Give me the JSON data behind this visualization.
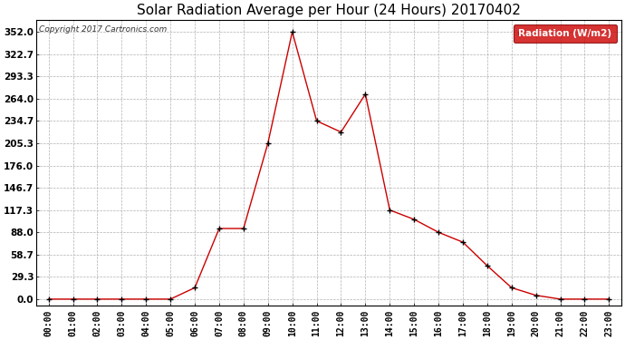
{
  "title": "Solar Radiation Average per Hour (24 Hours) 20170402",
  "copyright_text": "Copyright 2017 Cartronics.com",
  "legend_label": "Radiation (W/m2)",
  "hours": [
    "00:00",
    "01:00",
    "02:00",
    "03:00",
    "04:00",
    "05:00",
    "06:00",
    "07:00",
    "08:00",
    "09:00",
    "10:00",
    "11:00",
    "12:00",
    "13:00",
    "14:00",
    "15:00",
    "16:00",
    "17:00",
    "18:00",
    "19:00",
    "20:00",
    "21:00",
    "22:00",
    "23:00"
  ],
  "values": [
    0.0,
    0.0,
    0.0,
    0.0,
    0.0,
    0.0,
    15.0,
    93.0,
    93.0,
    205.3,
    352.0,
    234.7,
    220.0,
    270.0,
    117.3,
    105.0,
    88.0,
    75.0,
    44.0,
    15.0,
    5.0,
    0.0,
    0.0,
    0.0
  ],
  "line_color": "#cc0000",
  "marker_color": "#000000",
  "bg_color": "#ffffff",
  "grid_color": "#b0b0b0",
  "legend_bg": "#cc0000",
  "legend_text_color": "#ffffff",
  "title_color": "#000000",
  "yticks": [
    0.0,
    29.3,
    58.7,
    88.0,
    117.3,
    146.7,
    176.0,
    205.3,
    234.7,
    264.0,
    293.3,
    322.7,
    352.0
  ],
  "ylim": [
    -8,
    368
  ],
  "title_fontsize": 11,
  "figwidth": 6.9,
  "figheight": 3.75,
  "dpi": 100
}
